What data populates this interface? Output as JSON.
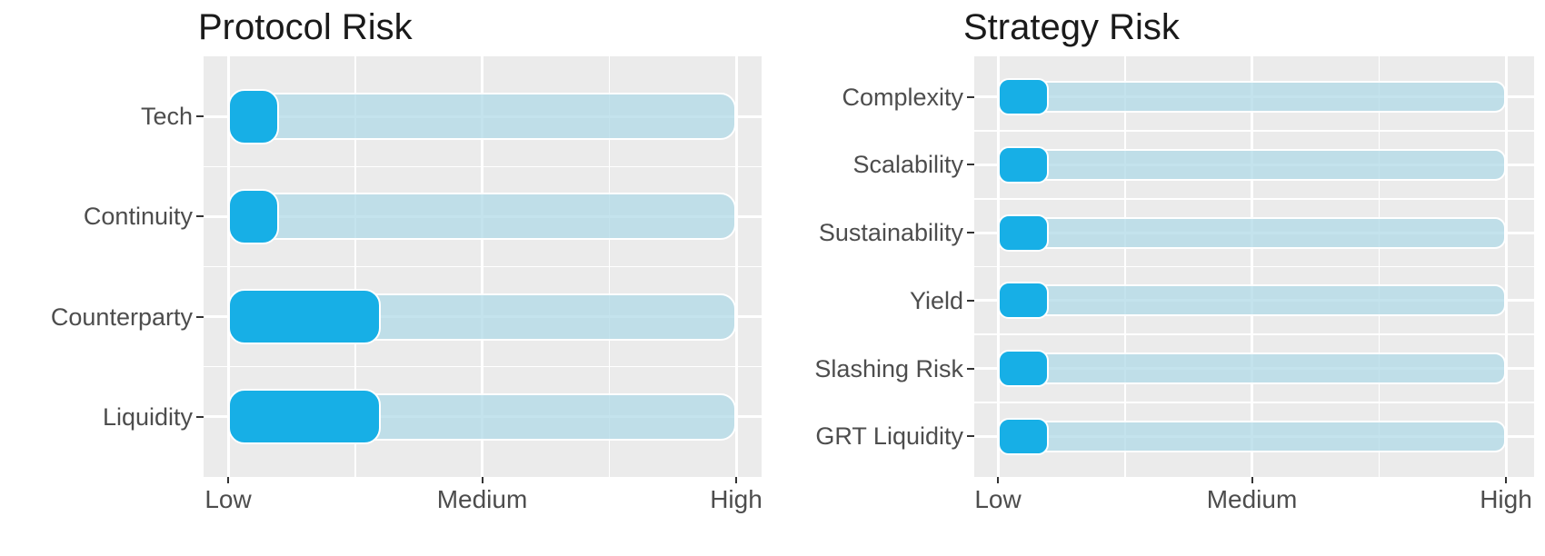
{
  "page": {
    "background": "#ffffff"
  },
  "chart_data": [
    {
      "type": "bar",
      "orientation": "horizontal",
      "title": "Protocol Risk",
      "categories": [
        "Tech",
        "Continuity",
        "Counterparty",
        "Liquidity"
      ],
      "values": [
        0.2,
        0.2,
        0.6,
        0.6
      ],
      "track_values": [
        2,
        2,
        2,
        2
      ],
      "x_axis": {
        "range": [
          0,
          2
        ],
        "tick_values": [
          0,
          1,
          2
        ],
        "tick_labels": [
          "Low",
          "Medium",
          "High"
        ]
      },
      "grid": true,
      "legend": "none",
      "colors": {
        "fill": "#17afe6",
        "track": "#add8e6",
        "track_alpha": 0.72,
        "panel": "#ebebeb",
        "grid": "#ffffff",
        "title_text": "#1a1a1a",
        "axis_text": "#4d4d4d",
        "tick_mark": "#333333"
      }
    },
    {
      "type": "bar",
      "orientation": "horizontal",
      "title": "Strategy Risk",
      "categories": [
        "Complexity",
        "Scalability",
        "Sustainability",
        "Yield",
        "Slashing Risk",
        "GRT Liquidity"
      ],
      "values": [
        0.2,
        0.2,
        0.2,
        0.2,
        0.2,
        0.2
      ],
      "track_values": [
        2,
        2,
        2,
        2,
        2,
        2
      ],
      "x_axis": {
        "range": [
          0,
          2
        ],
        "tick_values": [
          0,
          1,
          2
        ],
        "tick_labels": [
          "Low",
          "Medium",
          "High"
        ]
      },
      "grid": true,
      "legend": "none",
      "colors": {
        "fill": "#17afe6",
        "track": "#add8e6",
        "track_alpha": 0.72,
        "panel": "#ebebeb",
        "grid": "#ffffff",
        "title_text": "#1a1a1a",
        "axis_text": "#4d4d4d",
        "tick_mark": "#333333"
      }
    }
  ]
}
